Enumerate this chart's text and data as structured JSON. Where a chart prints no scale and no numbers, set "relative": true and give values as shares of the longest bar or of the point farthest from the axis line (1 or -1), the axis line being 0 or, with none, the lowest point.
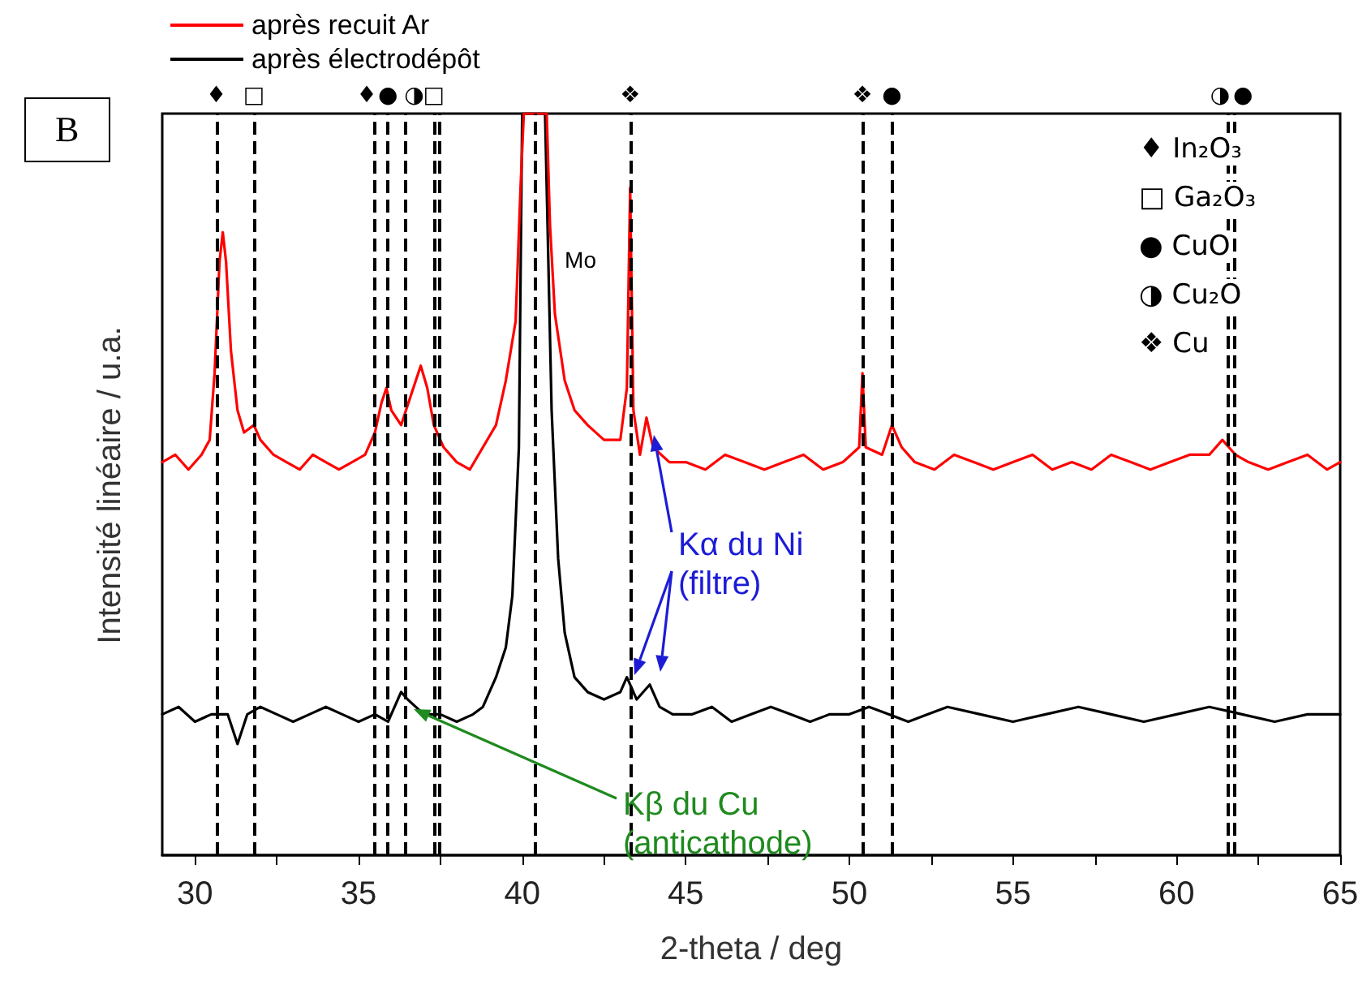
{
  "chart_data": {
    "type": "line",
    "relative": true,
    "xlabel": "2-theta / deg",
    "ylabel": "Intensité linéaire / u.a.",
    "legend": "top left",
    "line_style": "solid",
    "marker": "none",
    "grid": false,
    "xlim": [
      29,
      65
    ],
    "xticks": [
      30,
      {
        "value": 32.5,
        "label": null
      },
      35,
      {
        "value": 37.5,
        "label": null
      },
      40,
      {
        "value": 42.5,
        "label": null
      },
      45,
      {
        "value": 47.5,
        "label": null
      },
      50,
      {
        "value": 52.5,
        "label": null
      },
      55,
      {
        "value": 57.5,
        "label": null
      },
      60,
      {
        "value": 62.5,
        "label": null
      },
      65
    ],
    "series": [
      {
        "name": "après recuit Ar",
        "color": "#ff0000",
        "x": [
          29,
          29.4,
          29.8,
          30.2,
          30.45,
          30.6,
          30.75,
          30.85,
          30.95,
          31.1,
          31.3,
          31.5,
          31.8,
          32.0,
          32.4,
          32.8,
          33.2,
          33.6,
          34.0,
          34.4,
          34.8,
          35.2,
          35.5,
          35.7,
          35.85,
          36.0,
          36.3,
          36.6,
          36.9,
          37.1,
          37.3,
          37.6,
          38.0,
          38.4,
          38.8,
          39.2,
          39.5,
          39.8,
          39.95,
          40.05,
          40.75,
          40.85,
          41.0,
          41.3,
          41.6,
          42.0,
          42.5,
          43.0,
          43.2,
          43.3,
          43.4,
          43.6,
          43.8,
          44.0,
          44.5,
          45.0,
          45.6,
          46.2,
          46.8,
          47.4,
          48.0,
          48.6,
          49.2,
          49.8,
          50.3,
          50.4,
          50.5,
          51.0,
          51.3,
          51.6,
          52.0,
          52.6,
          53.2,
          53.8,
          54.4,
          55.0,
          55.6,
          56.2,
          56.8,
          57.4,
          58.0,
          58.6,
          59.2,
          59.8,
          60.4,
          61.0,
          61.4,
          61.8,
          62.2,
          62.8,
          63.4,
          64.0,
          64.6,
          65
        ],
        "values": [
          0.53,
          0.54,
          0.52,
          0.54,
          0.56,
          0.65,
          0.8,
          0.84,
          0.8,
          0.68,
          0.6,
          0.57,
          0.58,
          0.56,
          0.54,
          0.53,
          0.52,
          0.54,
          0.53,
          0.52,
          0.53,
          0.54,
          0.57,
          0.61,
          0.63,
          0.6,
          0.58,
          0.62,
          0.66,
          0.63,
          0.58,
          0.55,
          0.53,
          0.52,
          0.55,
          0.58,
          0.64,
          0.72,
          0.9,
          1,
          1,
          0.85,
          0.73,
          0.64,
          0.6,
          0.58,
          0.56,
          0.56,
          0.63,
          0.9,
          0.6,
          0.54,
          0.59,
          0.55,
          0.53,
          0.53,
          0.52,
          0.54,
          0.53,
          0.52,
          0.53,
          0.54,
          0.52,
          0.53,
          0.55,
          0.65,
          0.55,
          0.54,
          0.58,
          0.55,
          0.53,
          0.52,
          0.54,
          0.53,
          0.52,
          0.53,
          0.54,
          0.52,
          0.53,
          0.52,
          0.54,
          0.53,
          0.52,
          0.53,
          0.54,
          0.54,
          0.56,
          0.54,
          0.53,
          0.52,
          0.53,
          0.54,
          0.52,
          0.53
        ]
      },
      {
        "name": "après électrodépôt",
        "color": "#000000",
        "x": [
          29,
          29.5,
          30.0,
          30.5,
          31.0,
          31.3,
          31.6,
          32.0,
          32.5,
          33.0,
          33.5,
          34.0,
          34.5,
          35.0,
          35.5,
          35.9,
          36.3,
          36.5,
          37.0,
          37.5,
          38.0,
          38.5,
          38.8,
          39.2,
          39.5,
          39.7,
          39.9,
          40.0,
          40.7,
          40.9,
          41.1,
          41.3,
          41.6,
          42.0,
          42.5,
          43.0,
          43.2,
          43.5,
          43.9,
          44.2,
          44.6,
          45.2,
          45.8,
          46.4,
          47.0,
          47.6,
          48.2,
          48.8,
          49.4,
          50.0,
          50.6,
          51.2,
          51.8,
          52.4,
          53.0,
          54.0,
          55.0,
          56.0,
          57.0,
          58.0,
          59.0,
          60.0,
          61.0,
          62.0,
          63.0,
          64.0,
          65
        ],
        "values": [
          0.19,
          0.2,
          0.18,
          0.19,
          0.19,
          0.15,
          0.19,
          0.2,
          0.19,
          0.18,
          0.19,
          0.2,
          0.19,
          0.18,
          0.19,
          0.18,
          0.22,
          0.21,
          0.19,
          0.19,
          0.18,
          0.19,
          0.2,
          0.24,
          0.28,
          0.35,
          0.55,
          1,
          1,
          0.6,
          0.4,
          0.3,
          0.24,
          0.22,
          0.21,
          0.22,
          0.24,
          0.21,
          0.23,
          0.2,
          0.19,
          0.19,
          0.2,
          0.18,
          0.19,
          0.2,
          0.19,
          0.18,
          0.19,
          0.19,
          0.2,
          0.19,
          0.18,
          0.19,
          0.2,
          0.19,
          0.18,
          0.19,
          0.2,
          0.19,
          0.18,
          0.19,
          0.2,
          0.19,
          0.18,
          0.19,
          0.19
        ]
      }
    ],
    "ref_lines": [
      {
        "axis": "x",
        "value": 30.65,
        "label": "♦",
        "color": "#000000",
        "line_style": "dashed"
      },
      {
        "axis": "x",
        "value": 31.8,
        "label": "□",
        "color": "#000000",
        "line_style": "dashed"
      },
      {
        "axis": "x",
        "value": 35.5,
        "label": "♦",
        "color": "#000000",
        "line_style": "dashed"
      },
      {
        "axis": "x",
        "value": 35.9,
        "label": "●",
        "color": "#000000",
        "line_style": "dashed"
      },
      {
        "axis": "x",
        "value": 36.45,
        "label": "◑",
        "color": "#000000",
        "line_style": "dashed"
      },
      {
        "axis": "x",
        "value": 37.3,
        "label": "□",
        "color": "#000000",
        "line_style": "dashed"
      },
      {
        "axis": "x",
        "value": 37.45,
        "label": null,
        "color": "#000000",
        "line_style": "dashed"
      },
      {
        "axis": "x",
        "value": 40.4,
        "label": null,
        "color": "#000000",
        "line_style": "dashed"
      },
      {
        "axis": "x",
        "value": 43.3,
        "label": "❖",
        "color": "#000000",
        "line_style": "dashed"
      },
      {
        "axis": "x",
        "value": 50.4,
        "label": "❖",
        "color": "#000000",
        "line_style": "dashed"
      },
      {
        "axis": "x",
        "value": 51.3,
        "label": "●",
        "color": "#000000",
        "line_style": "dashed"
      },
      {
        "axis": "x",
        "value": 61.58,
        "label": "◑",
        "color": "#000000",
        "line_style": "dashed"
      },
      {
        "axis": "x",
        "value": 61.78,
        "label": "●",
        "color": "#000000",
        "line_style": "dashed"
      }
    ],
    "annotations": [
      "B",
      "♦ In₂O₃",
      "□ Ga₂O₃",
      "● CuO",
      "◑ Cu₂O",
      "❖ Cu",
      {
        "text": "Mo",
        "x": 41.2,
        "y": 0.75
      },
      "Kα du Ni\n(filtre)",
      "Kβ du Cu\n(anticathode)"
    ]
  }
}
